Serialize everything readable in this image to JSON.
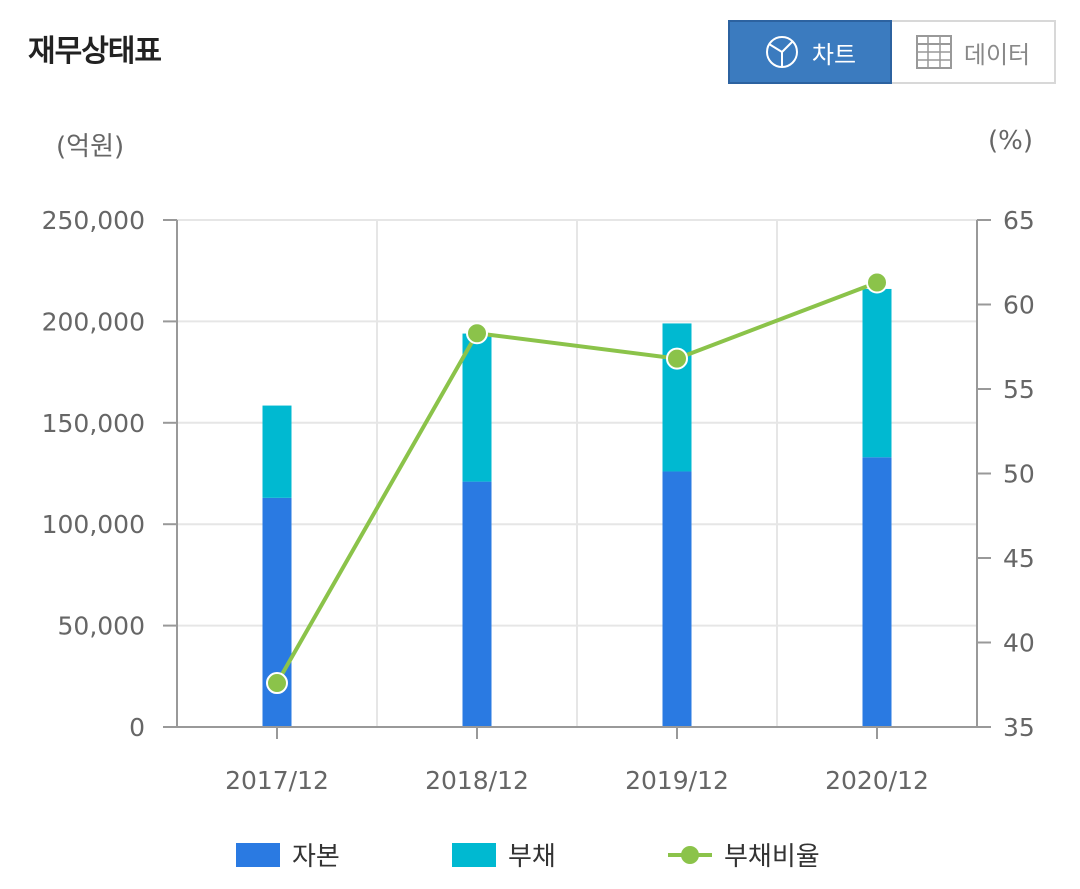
{
  "header": {
    "title": "재무상태표",
    "chart_button_label": "차트",
    "data_button_label": "데이터"
  },
  "chart_data": {
    "type": "bar",
    "stacked": true,
    "categories": [
      "2017/12",
      "2018/12",
      "2019/12",
      "2020/12"
    ],
    "series": [
      {
        "name": "자본",
        "type": "bar",
        "axis": "left",
        "color": "#2a7ae2",
        "values": [
          113000,
          121000,
          126000,
          133000
        ]
      },
      {
        "name": "부채",
        "type": "bar",
        "axis": "left",
        "color": "#00b9d1",
        "values": [
          45500,
          73000,
          73000,
          83000
        ]
      },
      {
        "name": "부채비율",
        "type": "line",
        "axis": "right",
        "color": "#8bc34a",
        "values": [
          37.6,
          58.3,
          56.8,
          61.3
        ]
      }
    ],
    "y_left": {
      "unit": "(억원)",
      "ylim": [
        0,
        250000
      ],
      "ticks": [
        "0",
        "50,000",
        "100,000",
        "150,000",
        "200,000",
        "250,000"
      ],
      "tick_values": [
        0,
        50000,
        100000,
        150000,
        200000,
        250000
      ]
    },
    "y_right": {
      "unit": "(%)",
      "ylim": [
        35,
        65
      ],
      "ticks": [
        "35",
        "40",
        "45",
        "50",
        "55",
        "60",
        "65"
      ],
      "tick_values": [
        35,
        40,
        45,
        50,
        55,
        60,
        65
      ]
    },
    "grid": true,
    "legend": "bottom"
  }
}
